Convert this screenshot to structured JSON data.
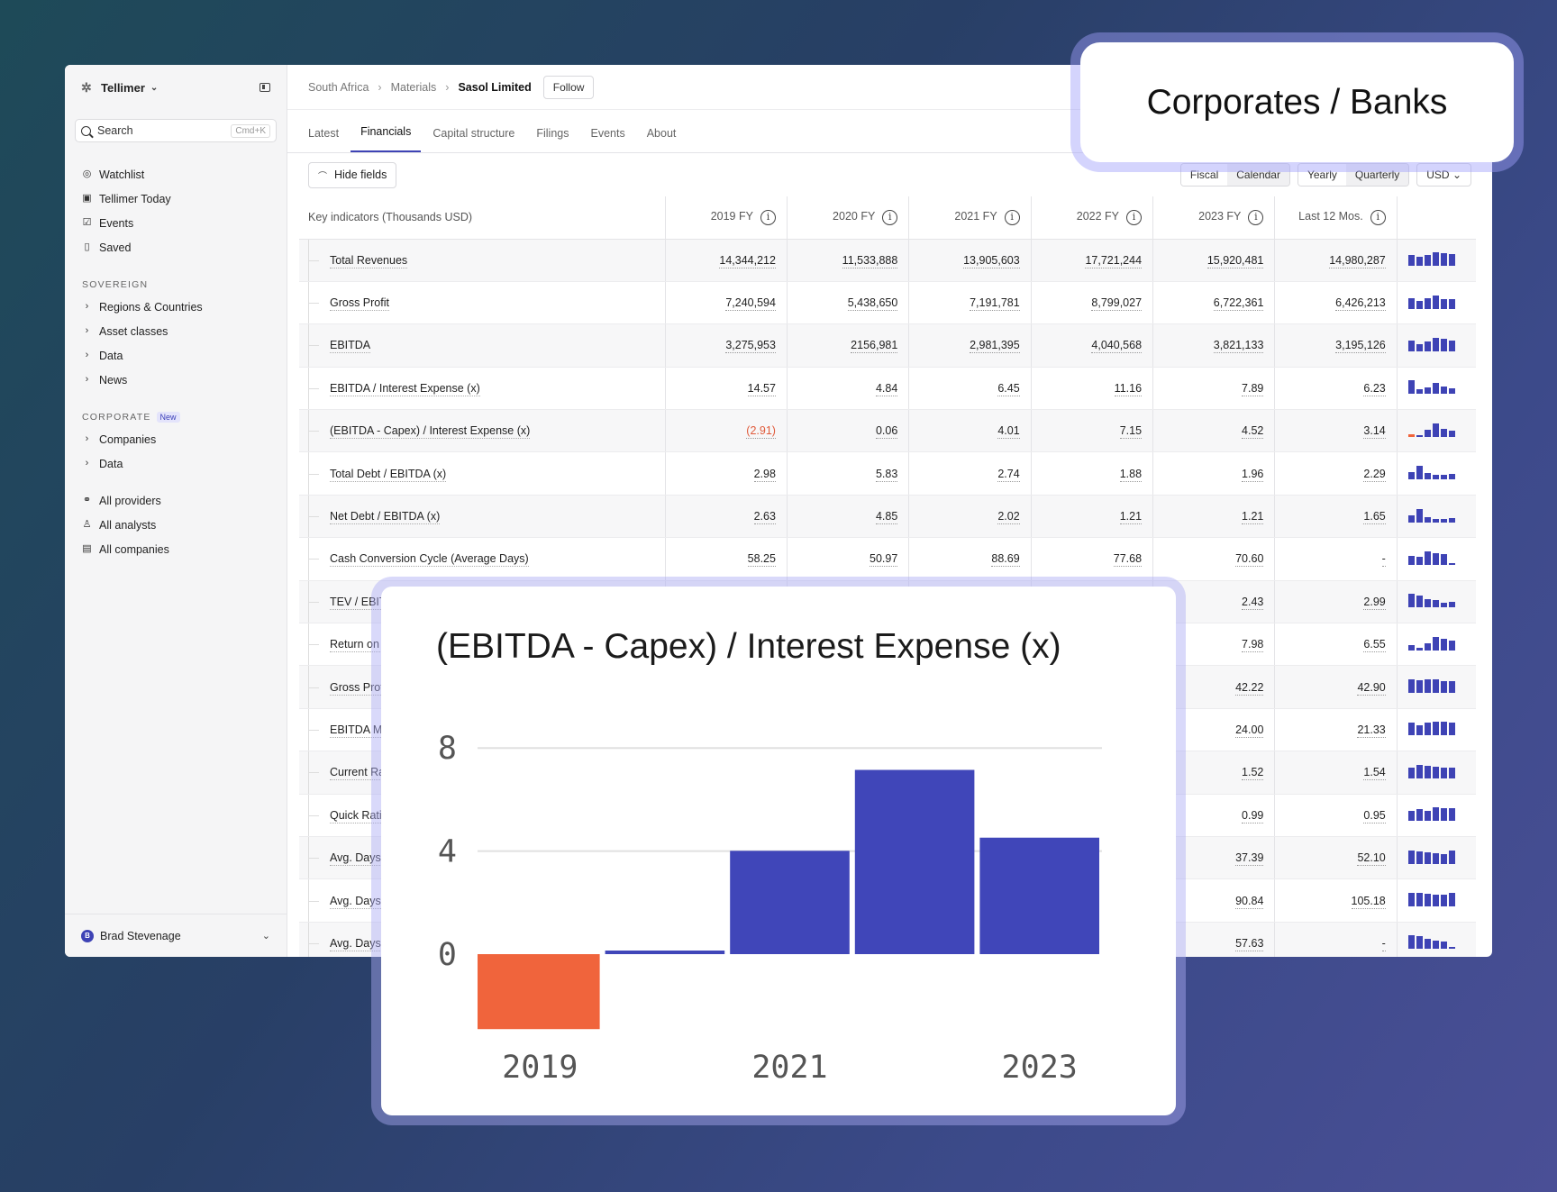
{
  "sidebar": {
    "brand": "Tellimer",
    "search_placeholder": "Search",
    "search_shortcut": "Cmd+K",
    "top_items": [
      {
        "label": "Watchlist",
        "icon": "watchlist-icon"
      },
      {
        "label": "Tellimer Today",
        "icon": "calendar-icon"
      },
      {
        "label": "Events",
        "icon": "event-icon"
      },
      {
        "label": "Saved",
        "icon": "bookmark-icon"
      }
    ],
    "sovereign_label": "SOVEREIGN",
    "sovereign_items": [
      "Regions & Countries",
      "Asset classes",
      "Data",
      "News"
    ],
    "corporate_label": "CORPORATE",
    "corporate_badge": "New",
    "corporate_items": [
      "Companies",
      "Data"
    ],
    "bottom_items": [
      {
        "label": "All providers",
        "icon": "providers-icon"
      },
      {
        "label": "All analysts",
        "icon": "user-icon"
      },
      {
        "label": "All companies",
        "icon": "building-icon"
      }
    ],
    "user_name": "Brad Stevenage",
    "user_initial": "B"
  },
  "breadcrumb": {
    "country": "South Africa",
    "sector": "Materials",
    "company": "Sasol Limited",
    "follow_label": "Follow"
  },
  "tabs": [
    "Latest",
    "Financials",
    "Capital structure",
    "Filings",
    "Events",
    "About"
  ],
  "active_tab": "Financials",
  "toolbar": {
    "hide_fields": "Hide fields",
    "period_basis": [
      "Fiscal",
      "Calendar"
    ],
    "active_basis": "Calendar",
    "frequency": [
      "Yearly",
      "Quarterly"
    ],
    "active_frequency": "Quarterly",
    "currency": "USD"
  },
  "table": {
    "header": "Key indicators (Thousands USD)",
    "columns": [
      "2019 FY",
      "2020 FY",
      "2021 FY",
      "2022 FY",
      "2023 FY",
      "Last 12 Mos."
    ],
    "rows": [
      {
        "label": "Total Revenues",
        "values": [
          "14,344,212",
          "11,533,888",
          "13,905,603",
          "17,721,244",
          "15,920,481",
          "14,980,287"
        ],
        "spark": [
          0.8,
          0.65,
          0.78,
          1,
          0.9,
          0.85
        ]
      },
      {
        "label": "Gross Profit",
        "values": [
          "7,240,594",
          "5,438,650",
          "7,191,781",
          "8,799,027",
          "6,722,361",
          "6,426,213"
        ],
        "spark": [
          0.82,
          0.62,
          0.82,
          1,
          0.76,
          0.73
        ]
      },
      {
        "label": "EBITDA",
        "values": [
          "3,275,953",
          "2156,981",
          "2,981,395",
          "4,040,568",
          "3,821,133",
          "3,195,126"
        ],
        "spark": [
          0.81,
          0.53,
          0.74,
          1,
          0.95,
          0.79
        ]
      },
      {
        "label": "EBITDA / Interest Expense (x)",
        "values": [
          "14.57",
          "4.84",
          "6.45",
          "11.16",
          "7.89",
          "6.23"
        ],
        "spark": [
          1,
          0.33,
          0.44,
          0.77,
          0.54,
          0.43
        ]
      },
      {
        "label": "(EBITDA - Capex) / Interest Expense (x)",
        "values": [
          "(2.91)",
          "0.06",
          "4.01",
          "7.15",
          "4.52",
          "3.14"
        ],
        "spark": [
          -0.3,
          0.05,
          0.56,
          1,
          0.63,
          0.44
        ],
        "negative_first": true
      },
      {
        "label": "Total Debt / EBITDA (x)",
        "values": [
          "2.98",
          "5.83",
          "2.74",
          "1.88",
          "1.96",
          "2.29"
        ],
        "spark": [
          0.51,
          1,
          0.47,
          0.32,
          0.34,
          0.39
        ]
      },
      {
        "label": "Net Debt / EBITDA (x)",
        "values": [
          "2.63",
          "4.85",
          "2.02",
          "1.21",
          "1.21",
          "1.65"
        ],
        "spark": [
          0.54,
          1,
          0.42,
          0.25,
          0.25,
          0.34
        ]
      },
      {
        "label": "Cash Conversion Cycle (Average Days)",
        "values": [
          "58.25",
          "50.97",
          "88.69",
          "77.68",
          "70.60",
          "-"
        ],
        "spark": [
          0.66,
          0.57,
          1,
          0.88,
          0.8,
          0
        ]
      },
      {
        "label": "TEV / EBITDA (x)",
        "values": [
          "",
          "",
          "",
          "",
          "2.43",
          "2.99"
        ],
        "spark": [
          1,
          0.85,
          0.6,
          0.5,
          0.35,
          0.42
        ]
      },
      {
        "label": "Return on Equity (%)",
        "values": [
          "",
          "",
          "",
          "",
          "7.98",
          "6.55"
        ],
        "spark": [
          0.4,
          0.2,
          0.55,
          1,
          0.85,
          0.75
        ]
      },
      {
        "label": "Gross Profit Margin (%)",
        "values": [
          "",
          "",
          "",
          "",
          "42.22",
          "42.90"
        ],
        "spark": [
          1,
          0.92,
          1,
          0.98,
          0.85,
          0.88
        ]
      },
      {
        "label": "EBITDA Margin (%)",
        "values": [
          "",
          "",
          "",
          "",
          "24.00",
          "21.33"
        ],
        "spark": [
          0.95,
          0.75,
          0.9,
          1,
          0.98,
          0.9
        ]
      },
      {
        "label": "Current Ratio (x)",
        "values": [
          "",
          "",
          "",
          "",
          "1.52",
          "1.54"
        ],
        "spark": [
          0.8,
          1,
          0.95,
          0.85,
          0.78,
          0.8
        ]
      },
      {
        "label": "Quick Ratio (x)",
        "values": [
          "",
          "",
          "",
          "",
          "0.99",
          "0.95"
        ],
        "spark": [
          0.7,
          0.85,
          0.75,
          1,
          0.95,
          0.92
        ]
      },
      {
        "label": "Avg. Days Sales Outstanding",
        "values": [
          "",
          "",
          "",
          "",
          "37.39",
          "52.10"
        ],
        "spark": [
          1,
          0.95,
          0.85,
          0.8,
          0.75,
          1
        ]
      },
      {
        "label": "Avg. Days Inventory Outstanding",
        "values": [
          "",
          "",
          "",
          "",
          "90.84",
          "105.18"
        ],
        "spark": [
          1,
          1,
          0.9,
          0.85,
          0.85,
          1
        ]
      },
      {
        "label": "Avg. Days Payable Outstanding",
        "values": [
          "",
          "",
          "",
          "",
          "57.63",
          "-"
        ],
        "spark": [
          1,
          0.9,
          0.75,
          0.6,
          0.55,
          0
        ]
      }
    ]
  },
  "callout": "Corporates / Banks",
  "chart_data": {
    "type": "bar",
    "title": "(EBITDA - Capex) / Interest Expense (x)",
    "categories": [
      "2019",
      "2020",
      "2021",
      "2022",
      "2023"
    ],
    "values": [
      -2.91,
      0.06,
      4.01,
      7.15,
      4.52
    ],
    "x_tick_labels": [
      "2019",
      "2021",
      "2023"
    ],
    "y_ticks": [
      0,
      4,
      8
    ],
    "ylim": [
      -3,
      8
    ],
    "colors": {
      "positive": "#4046b9",
      "negative": "#f0643c"
    },
    "grid": true
  }
}
